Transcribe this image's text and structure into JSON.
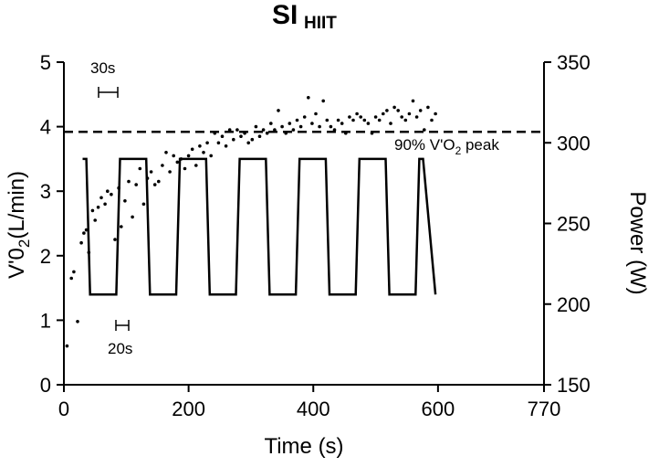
{
  "chart_data": {
    "type": "line",
    "title": "SI",
    "subtitle": "HIIT",
    "xlabel": "Time (s)",
    "ylabel_left_main": "V'0",
    "ylabel_left_sub": "2",
    "ylabel_left_unit": "(L/min)",
    "ylabel_right": "Power (W)",
    "xlim": [
      0,
      770
    ],
    "ylim_left": [
      0,
      5
    ],
    "ylim_right": [
      150,
      350
    ],
    "x_ticks": [
      0,
      200,
      400,
      600,
      770
    ],
    "x_tick_labels": [
      "0",
      "200",
      "400",
      "600",
      "770"
    ],
    "y_left_ticks": [
      0,
      1,
      2,
      3,
      4,
      5
    ],
    "y_left_tick_labels": [
      "0",
      "1",
      "2",
      "3",
      "4",
      "5"
    ],
    "y_right_ticks": [
      150,
      200,
      250,
      300,
      350
    ],
    "y_right_tick_labels": [
      "150",
      "200",
      "250",
      "300",
      "350"
    ],
    "threshold": {
      "label_main": "90% V'O",
      "label_sub": "2",
      "label_tail": " peak",
      "value": 3.92
    },
    "annotations": {
      "work_duration": "30s",
      "recovery_duration": "20s"
    },
    "series": [
      {
        "name": "Power",
        "axis": "right",
        "style": "step-line",
        "x": [
          30,
          36,
          42,
          48,
          78,
          84,
          90,
          96,
          126,
          132,
          138,
          144,
          174,
          180,
          186,
          192,
          222,
          228,
          234,
          240,
          270,
          276,
          282,
          288,
          318,
          324,
          330,
          336,
          366,
          372,
          378,
          384,
          414,
          420,
          426,
          432,
          462,
          468,
          474,
          480,
          510,
          516,
          522,
          528,
          558,
          564,
          570,
          576,
          596
        ],
        "values": [
          290,
          290,
          206,
          206,
          206,
          206,
          290,
          290,
          290,
          290,
          206,
          206,
          206,
          206,
          290,
          290,
          290,
          290,
          206,
          206,
          206,
          206,
          290,
          290,
          290,
          290,
          206,
          206,
          206,
          206,
          290,
          290,
          290,
          290,
          206,
          206,
          206,
          206,
          290,
          290,
          290,
          290,
          206,
          206,
          206,
          206,
          290,
          290,
          206
        ]
      },
      {
        "name": "V'O2",
        "axis": "left",
        "style": "scatter",
        "x": [
          5,
          12,
          16,
          22,
          28,
          32,
          36,
          40,
          46,
          50,
          55,
          60,
          66,
          70,
          76,
          82,
          88,
          92,
          98,
          104,
          110,
          116,
          122,
          128,
          134,
          140,
          146,
          152,
          158,
          164,
          170,
          176,
          182,
          188,
          194,
          200,
          206,
          212,
          218,
          224,
          230,
          236,
          242,
          248,
          254,
          260,
          266,
          272,
          278,
          284,
          290,
          296,
          302,
          308,
          314,
          320,
          326,
          332,
          338,
          344,
          350,
          356,
          362,
          368,
          374,
          380,
          386,
          392,
          398,
          404,
          410,
          416,
          422,
          428,
          434,
          440,
          446,
          452,
          458,
          464,
          470,
          476,
          482,
          488,
          494,
          500,
          506,
          512,
          518,
          524,
          530,
          536,
          542,
          548,
          554,
          560,
          566,
          572,
          578,
          584,
          590,
          596
        ],
        "values": [
          0.6,
          1.65,
          1.75,
          0.98,
          2.2,
          2.35,
          2.4,
          2.05,
          2.7,
          2.55,
          2.75,
          2.9,
          2.8,
          3.0,
          2.95,
          2.25,
          3.05,
          2.45,
          2.85,
          3.15,
          2.6,
          3.1,
          3.35,
          2.8,
          3.2,
          3.3,
          3.1,
          3.15,
          3.4,
          3.6,
          3.3,
          3.55,
          3.45,
          3.5,
          3.35,
          3.55,
          3.65,
          3.4,
          3.7,
          3.6,
          3.75,
          3.55,
          3.9,
          3.75,
          3.85,
          3.7,
          3.95,
          3.8,
          3.95,
          3.85,
          3.9,
          3.75,
          3.8,
          4.0,
          3.85,
          3.95,
          3.9,
          4.05,
          3.95,
          4.25,
          4.0,
          3.9,
          4.05,
          3.95,
          4.1,
          4.0,
          4.15,
          4.45,
          4.05,
          4.2,
          4.0,
          4.4,
          4.1,
          4.0,
          3.95,
          4.1,
          4.05,
          3.9,
          4.15,
          4.1,
          4.2,
          4.15,
          4.1,
          4.05,
          3.9,
          4.15,
          4.1,
          4.2,
          4.25,
          4.05,
          4.3,
          4.25,
          4.15,
          4.1,
          4.2,
          4.4,
          4.15,
          4.25,
          3.95,
          4.3,
          4.1,
          4.2
        ]
      }
    ]
  }
}
